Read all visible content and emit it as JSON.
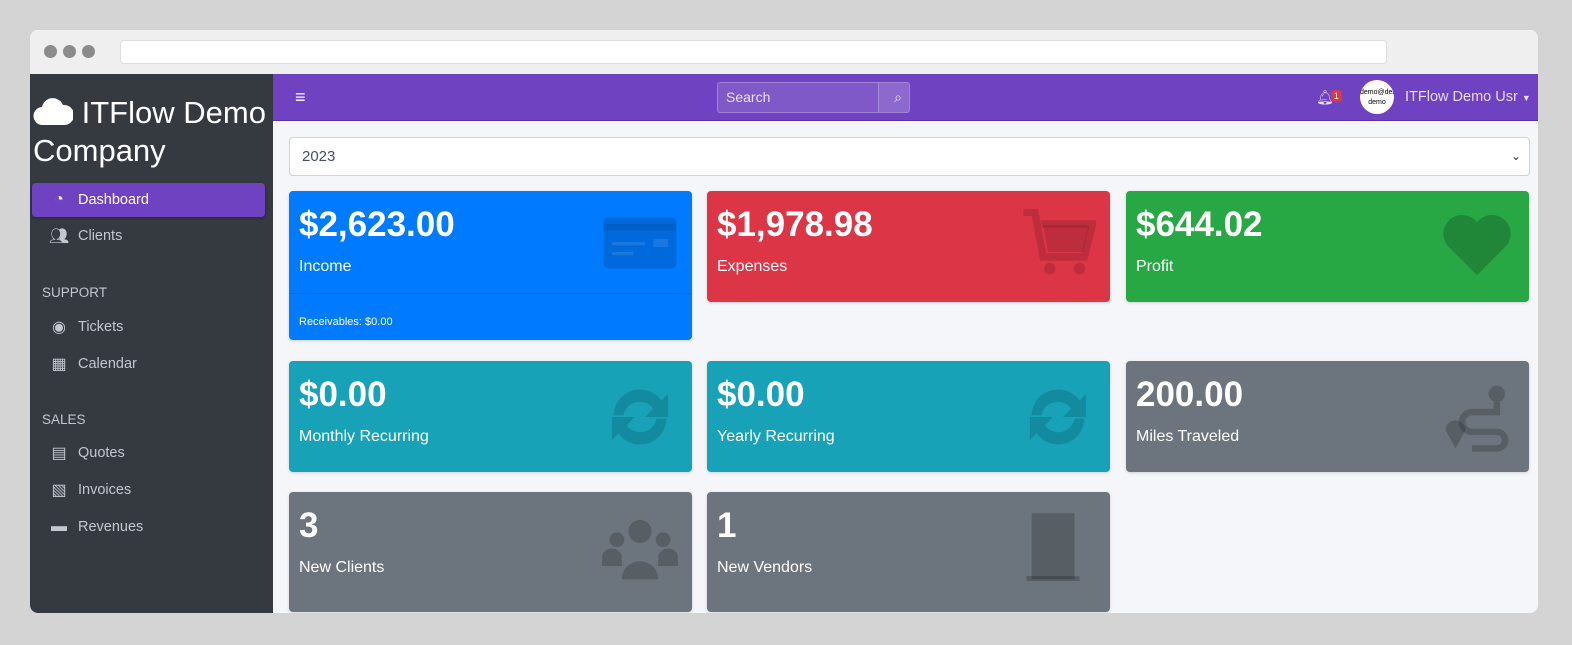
{
  "app": {
    "brand": "ITFlow Demo Company"
  },
  "sidebar": {
    "items": [
      {
        "label": "Dashboard",
        "icon": "tachometer-icon",
        "active": true
      },
      {
        "label": "Clients",
        "icon": "users-icon"
      }
    ],
    "sections": [
      {
        "header": "SUPPORT",
        "items": [
          {
            "label": "Tickets",
            "icon": "life-ring-icon"
          },
          {
            "label": "Calendar",
            "icon": "calendar-icon"
          }
        ]
      },
      {
        "header": "SALES",
        "items": [
          {
            "label": "Quotes",
            "icon": "file-icon"
          },
          {
            "label": "Invoices",
            "icon": "file-invoice-dollar-icon"
          },
          {
            "label": "Revenues",
            "icon": "credit-card-icon"
          }
        ]
      }
    ]
  },
  "topbar": {
    "search_placeholder": "Search",
    "notifications": "1",
    "avatar_text": "demo@demo demo",
    "user": "ITFlow Demo Usr"
  },
  "year_select": "2023",
  "cards": [
    {
      "value": "$2,623.00",
      "label": "Income",
      "footer": "Receivables: $0.00",
      "color": "#007bff"
    },
    {
      "value": "$1,978.98",
      "label": "Expenses",
      "color": "#dc3545"
    },
    {
      "value": "$644.02",
      "label": "Profit",
      "color": "#28a745"
    },
    {
      "value": "$0.00",
      "label": "Monthly Recurring",
      "color": "#17a2b8"
    },
    {
      "value": "$0.00",
      "label": "Yearly Recurring",
      "color": "#17a2b8"
    },
    {
      "value": "200.00",
      "label": "Miles Traveled",
      "color": "#6c757d"
    },
    {
      "value": "3",
      "label": "New Clients",
      "color": "#6c757d"
    },
    {
      "value": "1",
      "label": "New Vendors",
      "color": "#6c757d"
    }
  ]
}
